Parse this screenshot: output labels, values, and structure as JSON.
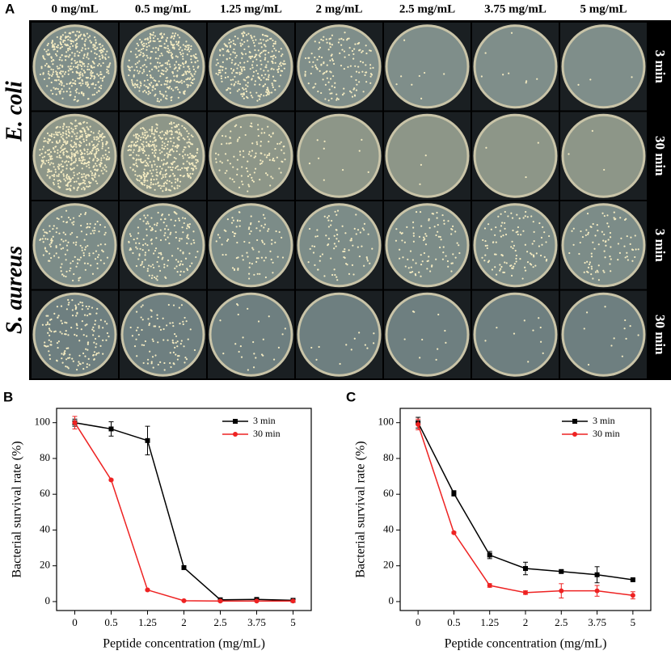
{
  "panel_a": {
    "label": "A",
    "columns": [
      "0 mg/mL",
      "0.5 mg/mL",
      "1.25 mg/mL",
      "2 mg/mL",
      "2.5 mg/mL",
      "3.75 mg/mL",
      "5 mg/mL"
    ],
    "species": [
      {
        "name": "E. coli",
        "times": [
          "3 min",
          "30 min"
        ]
      },
      {
        "name": "S. aureus",
        "times": [
          "3 min",
          "30 min"
        ]
      }
    ]
  },
  "chart_data": [
    {
      "type": "line",
      "panel_label": "B",
      "x_label": "Peptide concentration (mg/mL)",
      "y_label": "Bacterial survival rate (%)",
      "categories": [
        "0",
        "0.5",
        "1.25",
        "2",
        "2.5",
        "3.75",
        "5"
      ],
      "ylim": [
        -5,
        108
      ],
      "yticks": [
        0,
        20,
        40,
        60,
        80,
        100
      ],
      "legend": "upper right",
      "series": [
        {
          "name": "3 min",
          "color": "#000000",
          "marker": "square",
          "values": [
            100,
            96.5,
            90,
            19,
            1,
            1.2,
            0.7
          ],
          "errors": [
            2,
            4,
            8,
            1,
            0.5,
            0.5,
            0.5
          ]
        },
        {
          "name": "30 min",
          "color": "#ee2222",
          "marker": "circle",
          "values": [
            100,
            68,
            6.5,
            0.5,
            0.3,
            0.3,
            0.3
          ],
          "errors": [
            3.5,
            0.5,
            0.5,
            0.3,
            0.3,
            0.3,
            0.3
          ]
        }
      ]
    },
    {
      "type": "line",
      "panel_label": "C",
      "x_label": "Peptide concentration (mg/mL)",
      "y_label": "Bacterial survival rate (%)",
      "categories": [
        "0",
        "0.5",
        "1.25",
        "2",
        "2.5",
        "3.75",
        "5"
      ],
      "ylim": [
        -5,
        108
      ],
      "yticks": [
        0,
        20,
        40,
        60,
        80,
        100
      ],
      "legend": "upper right",
      "series": [
        {
          "name": "3 min",
          "color": "#000000",
          "marker": "square",
          "values": [
            100,
            60.5,
            26,
            18.5,
            16.8,
            15,
            12.2
          ],
          "errors": [
            3,
            1.5,
            2,
            3.5,
            0.8,
            4.5,
            0.5
          ]
        },
        {
          "name": "30 min",
          "color": "#ee2222",
          "marker": "circle",
          "values": [
            99,
            38.5,
            9,
            5,
            6,
            6,
            3.5
          ],
          "errors": [
            3,
            0.5,
            1,
            1,
            4,
            3,
            2
          ]
        }
      ]
    }
  ]
}
